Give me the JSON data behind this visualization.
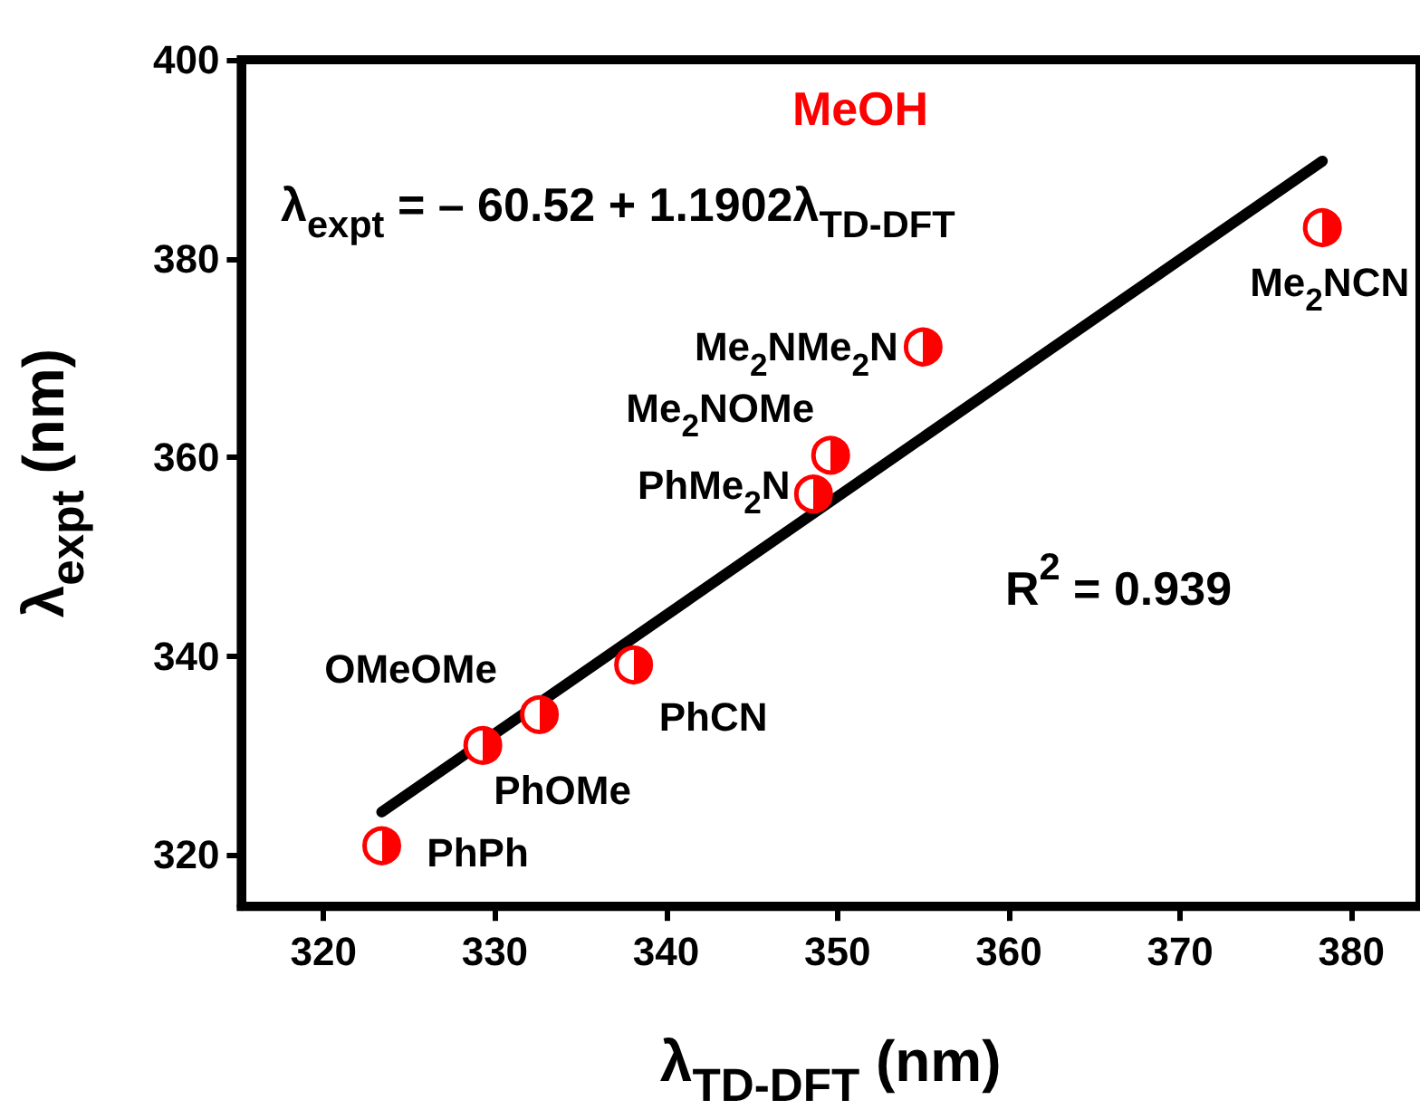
{
  "chart_data": {
    "type": "scatter",
    "title": "MeOH",
    "xlabel": "λ$_{TD-DFT}$ (nm)",
    "ylabel": "λ$_{expt}$ (nm)",
    "xlim": [
      315.2,
      384
    ],
    "xticks": [
      320,
      330,
      340,
      350,
      360,
      370,
      380
    ],
    "ylim": [
      314.8,
      400
    ],
    "yticks": [
      320,
      340,
      360,
      380,
      400
    ],
    "grid": false,
    "series": [
      {
        "color": "#ff0000",
        "marker": "circle",
        "x": [
          323.4,
          329.3,
          332.6,
          338.1,
          348.6,
          349.6,
          355.0,
          378.3
        ],
        "values": [
          320.9,
          331.0,
          334.1,
          339.1,
          356.3,
          360.2,
          371.1,
          383.1
        ]
      },
      {
        "type": "line",
        "color": "#000000",
        "marker": "none",
        "line_style": "solid",
        "x": [
          323.4,
          378.3
        ],
        "values": [
          324.3,
          389.8
        ]
      }
    ],
    "annotations": [
      "λ$_{expt}$ = – 60.52 + 1.1902λ$_{TD-DFT}$",
      "R$^{2}$ = 0.939",
      {
        "text": "Me$_{2}$NCN",
        "x": 378.3,
        "y": 383.1
      },
      {
        "text": "Me$_{2}$NMe$_{2}$N",
        "x": 355.0,
        "y": 371.1
      },
      {
        "text": "Me$_{2}$NOMe",
        "x": 349.6,
        "y": 360.2
      },
      {
        "text": "PhMe$_{2}$N",
        "x": 348.6,
        "y": 356.3
      },
      {
        "text": "OMeOMe",
        "x": 332.6,
        "y": 334.1
      },
      {
        "text": "PhCN",
        "x": 338.1,
        "y": 339.1
      },
      {
        "text": "PhOMe",
        "x": 329.3,
        "y": 331.0
      },
      {
        "text": "PhPh",
        "x": 323.4,
        "y": 320.9
      }
    ]
  }
}
